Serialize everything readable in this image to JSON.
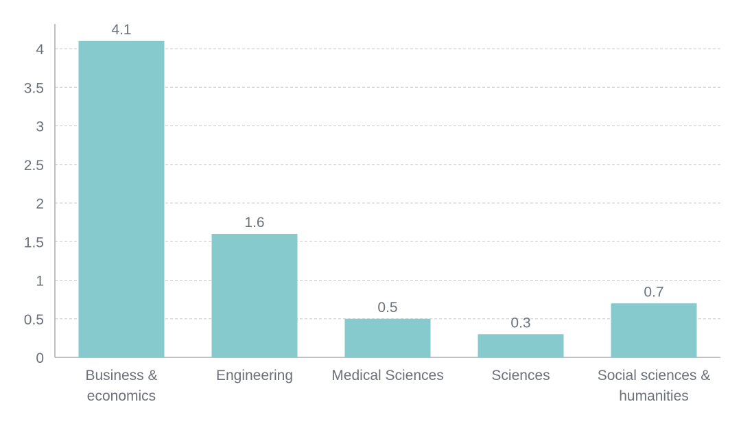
{
  "chart_data": {
    "type": "bar",
    "title": "",
    "xlabel": "",
    "ylabel": "",
    "categories": [
      [
        "Business &",
        "economics"
      ],
      [
        "Engineering"
      ],
      [
        "Medical Sciences"
      ],
      [
        "Sciences"
      ],
      [
        "Social sciences &",
        "humanities"
      ]
    ],
    "values": [
      4.1,
      1.6,
      0.5,
      0.3,
      0.7
    ],
    "data_labels": [
      "4.1",
      "1.6",
      "0.5",
      "0.3",
      "0.7"
    ],
    "ylim": [
      0,
      4.4
    ],
    "yticks": [
      0,
      0.5,
      1,
      1.5,
      2,
      2.5,
      3,
      3.5,
      4
    ],
    "ytick_labels": [
      "0",
      "0.5",
      "1",
      "1.5",
      "2",
      "2.5",
      "3",
      "3.5",
      "4"
    ],
    "grid": "horizontal dashed",
    "legend": "none",
    "colors": {
      "bar": "#86cacd",
      "text": "#6b7079",
      "grid": "#c8c8c8",
      "axis": "#a8abb0"
    }
  }
}
